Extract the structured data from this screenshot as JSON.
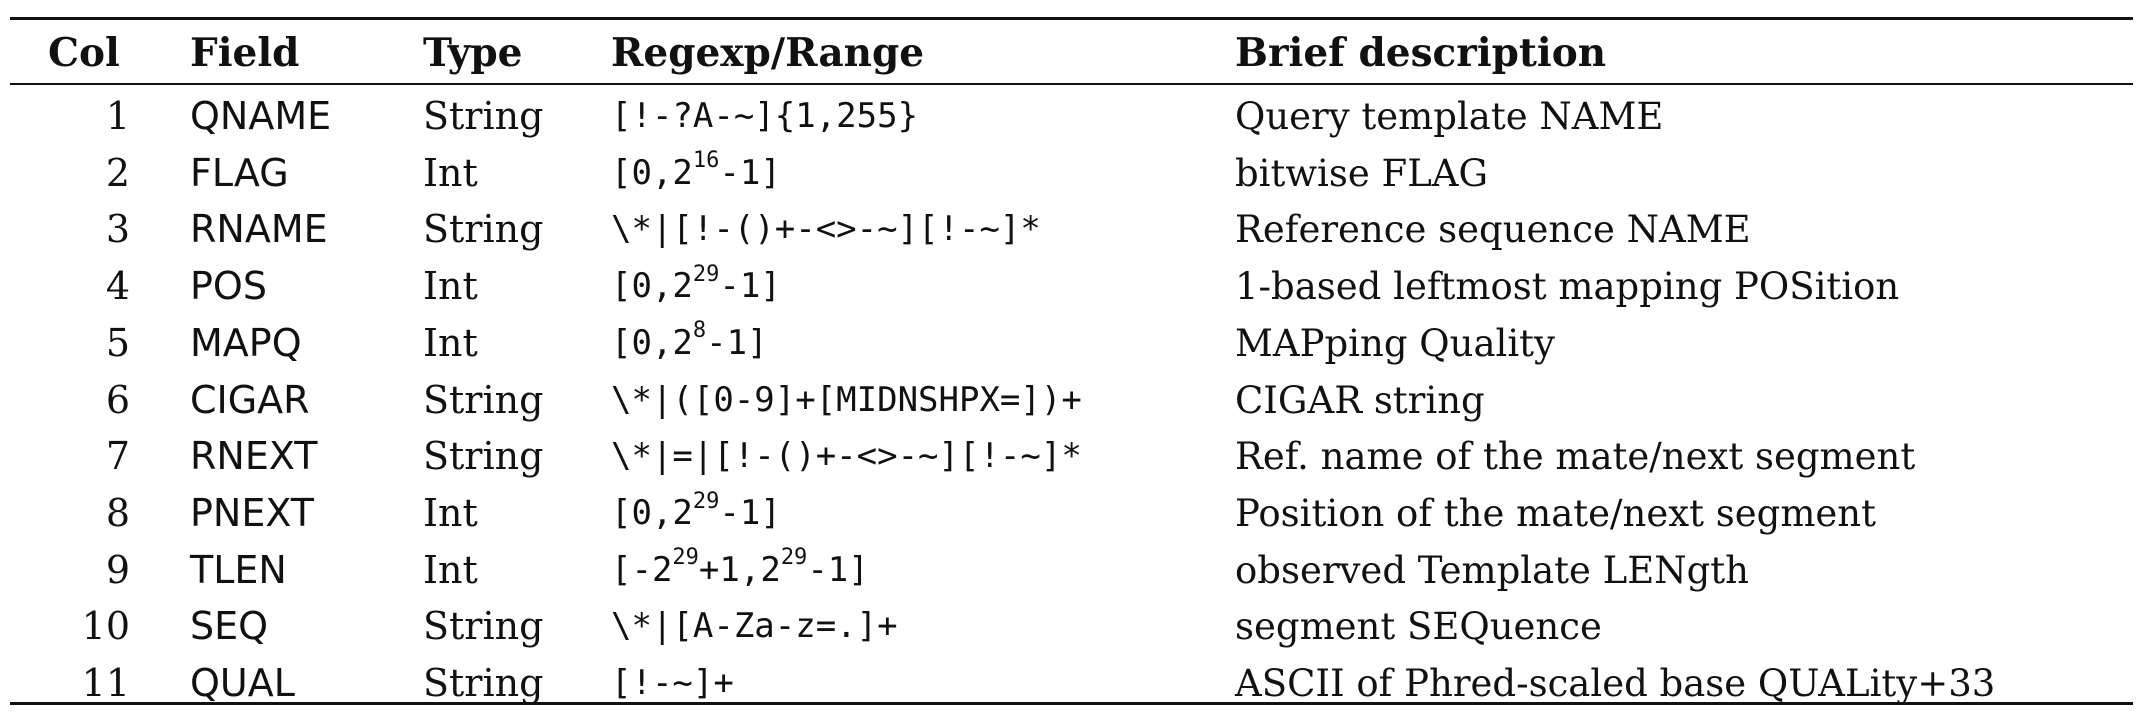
{
  "table": {
    "headers": {
      "col": "Col",
      "field": "Field",
      "type": "Type",
      "regexp": "Regexp/Range",
      "description": "Brief description"
    },
    "rows": [
      {
        "col": "1",
        "field": "QNAME",
        "type": "String",
        "re_parts": [
          "[!-?A-~]{1,255}"
        ],
        "sup": [],
        "desc": "Query template NAME"
      },
      {
        "col": "2",
        "field": "FLAG",
        "type": "Int",
        "re_parts": [
          "[0,2",
          "-1]"
        ],
        "sup": [
          "16"
        ],
        "desc": "bitwise FLAG"
      },
      {
        "col": "3",
        "field": "RNAME",
        "type": "String",
        "re_parts": [
          "\\*|[!-()+-<>-~][!-~]*"
        ],
        "sup": [],
        "desc": "Reference sequence NAME"
      },
      {
        "col": "4",
        "field": "POS",
        "type": "Int",
        "re_parts": [
          "[0,2",
          "-1]"
        ],
        "sup": [
          "29"
        ],
        "desc": "1-based leftmost mapping POSition"
      },
      {
        "col": "5",
        "field": "MAPQ",
        "type": "Int",
        "re_parts": [
          "[0,2",
          "-1]"
        ],
        "sup": [
          "8"
        ],
        "desc": "MAPping Quality"
      },
      {
        "col": "6",
        "field": "CIGAR",
        "type": "String",
        "re_parts": [
          "\\*|([0-9]+[MIDNSHPX=])+"
        ],
        "sup": [],
        "desc": "CIGAR string"
      },
      {
        "col": "7",
        "field": "RNEXT",
        "type": "String",
        "re_parts": [
          "\\*|=|[!-()+-<>-~][!-~]*"
        ],
        "sup": [],
        "desc": "Ref. name of the mate/next segment"
      },
      {
        "col": "8",
        "field": "PNEXT",
        "type": "Int",
        "re_parts": [
          "[0,2",
          "-1]"
        ],
        "sup": [
          "29"
        ],
        "desc": "Position of the mate/next segment"
      },
      {
        "col": "9",
        "field": "TLEN",
        "type": "Int",
        "re_parts": [
          "[-2",
          "+1,2",
          "-1]"
        ],
        "sup": [
          "29",
          "29"
        ],
        "desc": "observed Template LENgth"
      },
      {
        "col": "10",
        "field": "SEQ",
        "type": "String",
        "re_parts": [
          "\\*|[A-Za-z=.]+"
        ],
        "sup": [],
        "desc": "segment SEQuence"
      },
      {
        "col": "11",
        "field": "QUAL",
        "type": "String",
        "re_parts": [
          "[!-~]+"
        ],
        "sup": [],
        "desc": "ASCII of Phred-scaled base QUALity+33"
      }
    ]
  }
}
